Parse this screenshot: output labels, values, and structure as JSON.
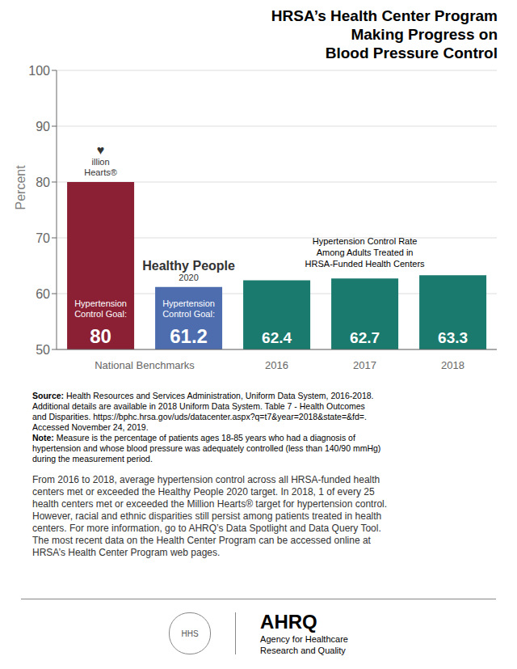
{
  "chart_data": {
    "type": "bar",
    "title": "HRSA’s Health Center Program\nMaking Progress on\nBlood Pressure Control",
    "ylabel": "Percent",
    "categories": [
      null,
      null,
      "2016",
      "2017",
      "2018"
    ],
    "group_label": "National Benchmarks",
    "values": [
      80,
      61.2,
      62.4,
      62.7,
      63.3
    ],
    "colors": [
      "#8B2035",
      "#4D6DAF",
      "#1A7A6E",
      "#1A7A6E",
      "#1A7A6E"
    ],
    "ylim": [
      50,
      100
    ],
    "yticks": [
      50,
      60,
      70,
      80,
      90,
      100
    ],
    "grid": true,
    "data_labels": true,
    "bar_sublabels": [
      "Hypertension\nControl Goal:",
      "Hypertension\nControl Goal:",
      null,
      null,
      null
    ],
    "bar_badges": [
      [
        "♥",
        "illion\nHearts®"
      ],
      [
        "Healthy People",
        "2020"
      ],
      null,
      null,
      null
    ],
    "rate_label": "Hypertension Control Rate\nAmong Adults Treated in\nHRSA-Funded Health Centers",
    "source_bold": "Source:",
    "source_rest": " Health Resources and Services Administration, Uniform Data System, 2016-2018.\nAdditional details are available in 2018 Uniform Data System. Table 7 - Health Outcomes\nand Disparities. https://bphc.hrsa.gov/uds/datacenter.aspx?q=t7&year=2018&state=&fd=.\nAccessed November 24, 2019.",
    "note_bold": "Note:",
    "note_rest": " Measure is the percentage of patients ages 18-85 years who had a diagnosis of\nhypertension and whose blood pressure was adequately controlled (less than 140/90 mmHg)\nduring the measurement period.",
    "body_text": "From 2016 to 2018, average hypertension control across all HRSA-funded health\ncenters met or exceeded the Healthy People 2020 target. In 2018, 1 of every 25\nhealth centers met or exceeded the Million Hearts® target for hypertension control.\nHowever, racial and ethnic disparities still persist among patients treated in health\ncenters. For more information, go to AHRQ’s Data Spotlight and Data Query Tool.\nThe most recent data on the Health Center Program can be accessed online at\nHRSA’s Health Center Program web pages.",
    "footer": [
      "HHS",
      "AHRQ",
      "Agency for Healthcare\nResearch and Quality"
    ]
  }
}
